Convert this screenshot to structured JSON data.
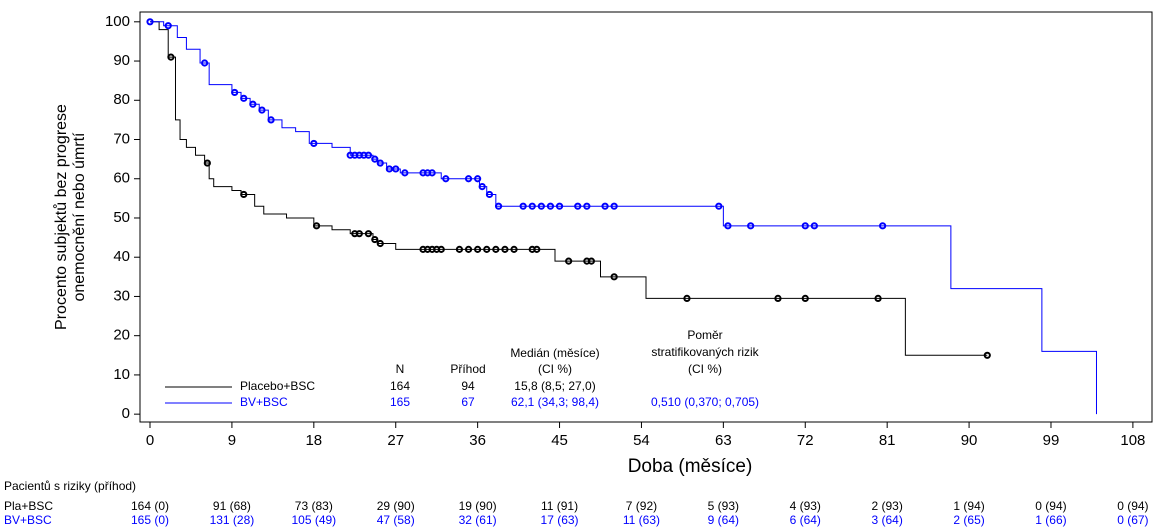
{
  "chart_data": {
    "type": "line",
    "step": true,
    "ylabel": [
      "Procento subjektů bez progrese",
      "onemocnění nebo úmrtí"
    ],
    "xlabel": "Doba (měsíce)",
    "xlim": [
      -1.1,
      110.1
    ],
    "ylim": [
      -2,
      102.5
    ],
    "xticks": [
      0,
      9,
      18,
      27,
      36,
      45,
      54,
      63,
      72,
      81,
      90,
      99,
      108
    ],
    "yticks": [
      0,
      10,
      20,
      30,
      40,
      50,
      60,
      70,
      80,
      90,
      100
    ],
    "series": [
      {
        "name": "Placebo+BSC",
        "color": "#000000",
        "x": [
          0,
          1,
          2,
          2.8,
          3.3,
          4,
          5,
          6,
          6.5,
          7,
          9,
          10,
          11.5,
          12.5,
          15,
          18,
          20,
          22,
          24.5,
          25,
          27,
          44.5,
          49.5,
          54.5,
          83
        ],
        "values": [
          100,
          98,
          91,
          75,
          70,
          68,
          66,
          64,
          60,
          58,
          57,
          56,
          53,
          51,
          50,
          48,
          47,
          46,
          44.5,
          43.5,
          42,
          39,
          35,
          29.5,
          15
        ],
        "censored_x": [
          2.3,
          6.3,
          10.3,
          18.3,
          22.5,
          23,
          24,
          24.7,
          25.3,
          30,
          30.5,
          31,
          31.5,
          32,
          34,
          35,
          36,
          37,
          38,
          39,
          40,
          42,
          42.5,
          46,
          48,
          48.5,
          51,
          59,
          69,
          72,
          80,
          92
        ],
        "censored_values": [
          91,
          64,
          56,
          48,
          46,
          46,
          46,
          44.5,
          43.5,
          42,
          42,
          42,
          42,
          42,
          42,
          42,
          42,
          42,
          42,
          42,
          42,
          42,
          42,
          39,
          39,
          39,
          35,
          29.5,
          29.5,
          29.5,
          29.5,
          15
        ],
        "n": 164,
        "events": 94,
        "median": "15,8 (8,5; 27,0)"
      },
      {
        "name": "BV+BSC",
        "color": "#0000ff",
        "x": [
          0,
          1.5,
          3,
          4,
          5.5,
          6.5,
          9,
          10,
          11,
          12,
          13,
          14.5,
          16,
          17.5,
          20,
          22,
          24.5,
          25,
          26,
          27.5,
          32,
          36.2,
          37,
          38,
          63,
          88,
          98,
          104
        ],
        "values": [
          100,
          99,
          96,
          93,
          89.5,
          84,
          82,
          80.5,
          79,
          77.5,
          75,
          73,
          72,
          69,
          68,
          66,
          65,
          64,
          62.5,
          61.5,
          60,
          58,
          56,
          53,
          48,
          32,
          16,
          0
        ],
        "censored_x": [
          0,
          2,
          6,
          9.3,
          10.3,
          11.3,
          12.3,
          13.3,
          18,
          22,
          22.5,
          23,
          23.5,
          24,
          24.7,
          25.3,
          26.3,
          27,
          28,
          30,
          30.5,
          31,
          32.5,
          35,
          36,
          36.5,
          37.3,
          38.3,
          41,
          42,
          43,
          44,
          45,
          47,
          48,
          50,
          51,
          62.5,
          63.5,
          66,
          72,
          73,
          80.5
        ],
        "censored_values": [
          100,
          99,
          89.5,
          82,
          80.5,
          79,
          77.5,
          75,
          69,
          66,
          66,
          66,
          66,
          66,
          65,
          64,
          62.5,
          62.5,
          61.5,
          61.5,
          61.5,
          61.5,
          60,
          60,
          60,
          58,
          56,
          53,
          53,
          53,
          53,
          53,
          53,
          53,
          53,
          53,
          53,
          53,
          48,
          48,
          48,
          48,
          48
        ],
        "n": 165,
        "events": 67,
        "median": "62,1 (34,3; 98,4)",
        "hazard_ratio": "0,510 (0,370; 0,705)"
      }
    ],
    "summary_headers": {
      "n": "N",
      "events": "Příhod",
      "median": [
        "Medián (měsíce)",
        "(CI %)"
      ],
      "hazard_ratio": [
        "Poměr",
        "stratifikovaných rizik",
        "(CI %)"
      ]
    },
    "risk_table": {
      "title": "Pacientů s riziky (příhod)",
      "rows": [
        {
          "label": "Pla+BSC",
          "values": [
            "164 (0)",
            "91 (68)",
            "73 (83)",
            "29 (90)",
            "19 (90)",
            "11 (91)",
            "7 (92)",
            "5 (93)",
            "4 (93)",
            "2 (93)",
            "1 (94)",
            "0 (94)",
            "0 (94)"
          ]
        },
        {
          "label": "BV+BSC",
          "values": [
            "165 (0)",
            "131 (28)",
            "105 (49)",
            "47 (58)",
            "32 (61)",
            "17 (63)",
            "11 (63)",
            "9 (64)",
            "6 (64)",
            "3 (64)",
            "2 (65)",
            "1 (66)",
            "0 (67)"
          ]
        }
      ]
    }
  }
}
